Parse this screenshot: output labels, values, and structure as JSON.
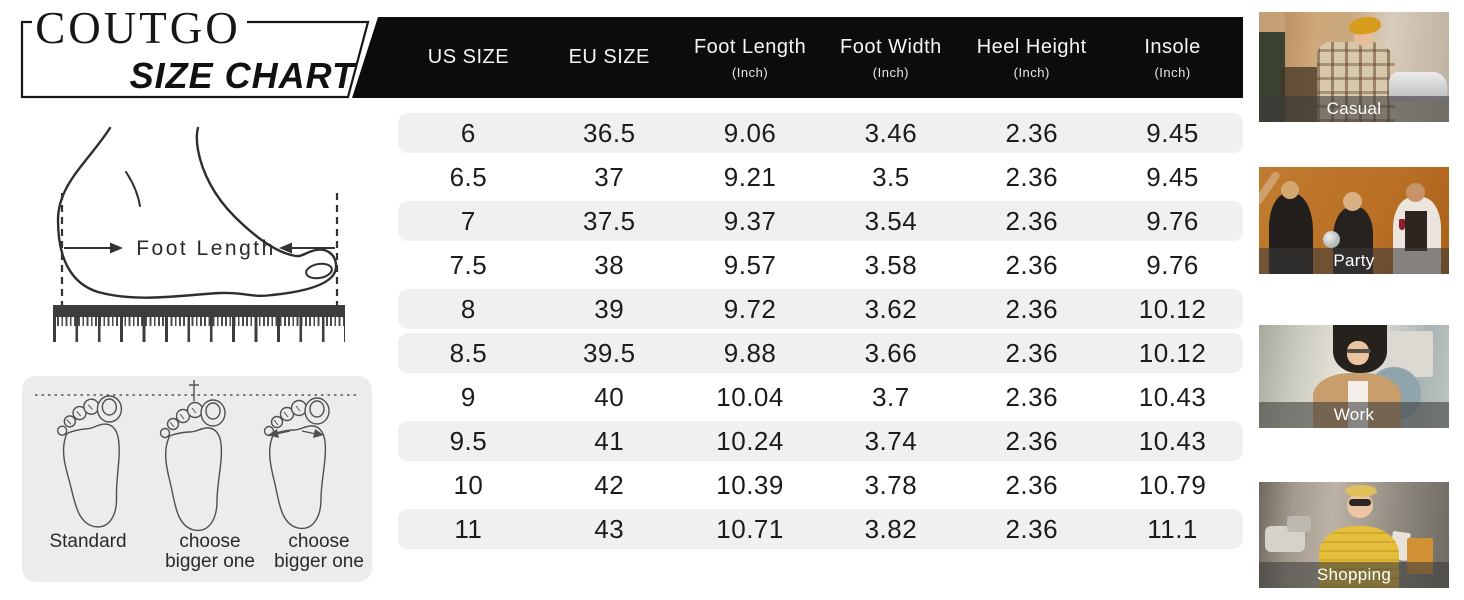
{
  "brand": {
    "name": "COUTGO",
    "subtitle": "SIZE CHART"
  },
  "measure_diagram": {
    "arrow_label": "Foot Length"
  },
  "fit_guide": {
    "labels": [
      "Standard",
      "choose\nbigger one",
      "choose\nbigger one"
    ]
  },
  "table": {
    "columns": [
      {
        "label": "US SIZE",
        "sub": ""
      },
      {
        "label": "EU SIZE",
        "sub": ""
      },
      {
        "label": "Foot Length",
        "sub": "(Inch)"
      },
      {
        "label": "Foot Width",
        "sub": "(Inch)"
      },
      {
        "label": "Heel Height",
        "sub": "(Inch)"
      },
      {
        "label": "Insole",
        "sub": "(Inch)"
      }
    ],
    "rows": [
      {
        "us": "6",
        "eu": "36.5",
        "foot_length": "9.06",
        "foot_width": "3.46",
        "heel_height": "2.36",
        "insole": "9.45",
        "shaded": true
      },
      {
        "us": "6.5",
        "eu": "37",
        "foot_length": "9.21",
        "foot_width": "3.5",
        "heel_height": "2.36",
        "insole": "9.45",
        "shaded": false
      },
      {
        "us": "7",
        "eu": "37.5",
        "foot_length": "9.37",
        "foot_width": "3.54",
        "heel_height": "2.36",
        "insole": "9.76",
        "shaded": true
      },
      {
        "us": "7.5",
        "eu": "38",
        "foot_length": "9.57",
        "foot_width": "3.58",
        "heel_height": "2.36",
        "insole": "9.76",
        "shaded": false
      },
      {
        "us": "8",
        "eu": "39",
        "foot_length": "9.72",
        "foot_width": "3.62",
        "heel_height": "2.36",
        "insole": "10.12",
        "shaded": true
      },
      {
        "us": "8.5",
        "eu": "39.5",
        "foot_length": "9.88",
        "foot_width": "3.66",
        "heel_height": "2.36",
        "insole": "10.12",
        "shaded": true
      },
      {
        "us": "9",
        "eu": "40",
        "foot_length": "10.04",
        "foot_width": "3.7",
        "heel_height": "2.36",
        "insole": "10.43",
        "shaded": false
      },
      {
        "us": "9.5",
        "eu": "41",
        "foot_length": "10.24",
        "foot_width": "3.74",
        "heel_height": "2.36",
        "insole": "10.43",
        "shaded": true
      },
      {
        "us": "10",
        "eu": "42",
        "foot_length": "10.39",
        "foot_width": "3.78",
        "heel_height": "2.36",
        "insole": "10.79",
        "shaded": false
      },
      {
        "us": "11",
        "eu": "43",
        "foot_length": "10.71",
        "foot_width": "3.82",
        "heel_height": "2.36",
        "insole": "11.1",
        "shaded": true
      }
    ]
  },
  "gallery": [
    {
      "label": "Casual"
    },
    {
      "label": "Party"
    },
    {
      "label": "Work"
    },
    {
      "label": "Shopping"
    }
  ],
  "colors": {
    "header_bg": "#0c0c0c",
    "row_stripe": "#f0f0f0",
    "panel_bg": "#ececec",
    "label_bar": "rgba(58,58,58,0.58)",
    "ruler": "#3d3d3d"
  }
}
